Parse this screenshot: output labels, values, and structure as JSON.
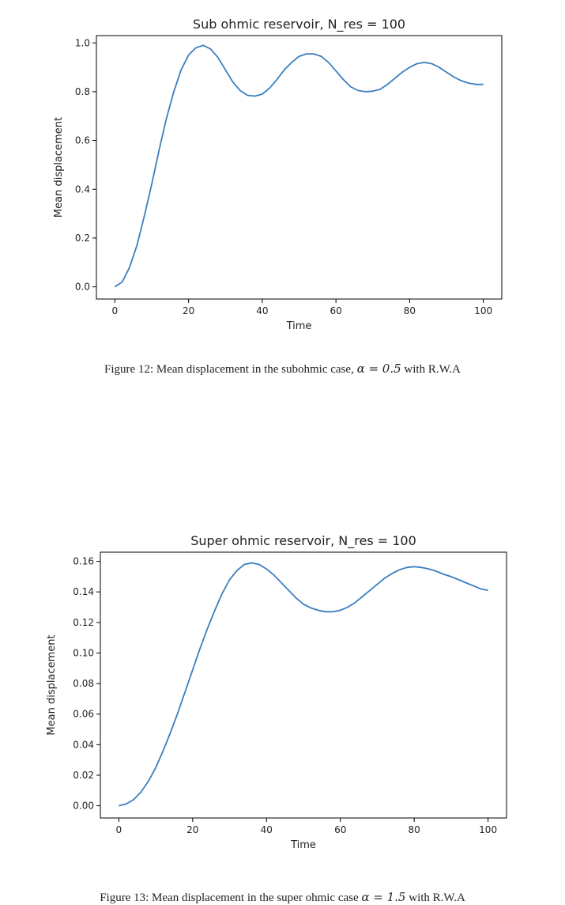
{
  "chart_data": [
    {
      "type": "line",
      "title": "Sub ohmic reservoir, N_res = 100",
      "xlabel": "Time",
      "ylabel": "Mean displacement",
      "xlim": [
        -5,
        105
      ],
      "ylim": [
        -0.05,
        1.03
      ],
      "xticks": [
        0,
        20,
        40,
        60,
        80,
        100
      ],
      "xtick_labels": [
        "0",
        "20",
        "40",
        "60",
        "80",
        "100"
      ],
      "yticks": [
        0.0,
        0.2,
        0.4,
        0.6,
        0.8,
        1.0
      ],
      "ytick_labels": [
        "0.0",
        "0.2",
        "0.4",
        "0.6",
        "0.8",
        "1.0"
      ],
      "grid": false,
      "color": "#3b7fbf",
      "series": [
        {
          "x": [
            0,
            2,
            4,
            6,
            8,
            10,
            12,
            14,
            16,
            18,
            20,
            22,
            24,
            26,
            28,
            30,
            32,
            34,
            36,
            38,
            40,
            42,
            44,
            46,
            48,
            50,
            52,
            54,
            56,
            58,
            60,
            62,
            64,
            66,
            68,
            70,
            72,
            74,
            76,
            78,
            80,
            82,
            84,
            86,
            88,
            90,
            92,
            94,
            96,
            98,
            100
          ],
          "y": [
            0.0,
            0.02,
            0.08,
            0.17,
            0.29,
            0.42,
            0.56,
            0.69,
            0.8,
            0.89,
            0.95,
            0.98,
            0.99,
            0.975,
            0.94,
            0.89,
            0.84,
            0.805,
            0.785,
            0.782,
            0.79,
            0.815,
            0.85,
            0.89,
            0.92,
            0.945,
            0.955,
            0.955,
            0.945,
            0.92,
            0.885,
            0.85,
            0.82,
            0.805,
            0.8,
            0.802,
            0.81,
            0.83,
            0.855,
            0.88,
            0.9,
            0.915,
            0.92,
            0.915,
            0.9,
            0.88,
            0.86,
            0.845,
            0.835,
            0.83,
            0.83
          ]
        }
      ]
    },
    {
      "type": "line",
      "title": "Super ohmic reservoir, N_res = 100",
      "xlabel": "Time",
      "ylabel": "Mean displacement",
      "xlim": [
        -5,
        105
      ],
      "ylim": [
        -0.008,
        0.166
      ],
      "xticks": [
        0,
        20,
        40,
        60,
        80,
        100
      ],
      "xtick_labels": [
        "0",
        "20",
        "40",
        "60",
        "80",
        "100"
      ],
      "yticks": [
        0.0,
        0.02,
        0.04,
        0.06,
        0.08,
        0.1,
        0.12,
        0.14,
        0.16
      ],
      "ytick_labels": [
        "0.00",
        "0.02",
        "0.04",
        "0.06",
        "0.08",
        "0.10",
        "0.12",
        "0.14",
        "0.16"
      ],
      "grid": false,
      "color": "#3b7fbf",
      "series": [
        {
          "x": [
            0,
            2,
            4,
            6,
            8,
            10,
            12,
            14,
            16,
            18,
            20,
            22,
            24,
            26,
            28,
            30,
            32,
            34,
            36,
            38,
            40,
            42,
            44,
            46,
            48,
            50,
            52,
            54,
            56,
            58,
            60,
            62,
            64,
            66,
            68,
            70,
            72,
            74,
            76,
            78,
            80,
            82,
            84,
            86,
            88,
            90,
            92,
            94,
            96,
            98,
            100
          ],
          "y": [
            0.0,
            0.0012,
            0.004,
            0.009,
            0.016,
            0.025,
            0.036,
            0.048,
            0.061,
            0.075,
            0.089,
            0.103,
            0.116,
            0.128,
            0.139,
            0.148,
            0.154,
            0.158,
            0.159,
            0.158,
            0.155,
            0.151,
            0.146,
            0.141,
            0.136,
            0.132,
            0.1295,
            0.128,
            0.127,
            0.127,
            0.128,
            0.13,
            0.133,
            0.137,
            0.141,
            0.145,
            0.149,
            0.152,
            0.1545,
            0.156,
            0.1565,
            0.156,
            0.155,
            0.1535,
            0.1515,
            0.15,
            0.148,
            0.146,
            0.144,
            0.142,
            0.141
          ]
        }
      ]
    }
  ],
  "captions": {
    "fig12": {
      "prefix": "Figure 12: Mean displacement in the subohmic case, ",
      "math": "α = 0.5",
      "suffix": " with R.W.A"
    },
    "fig13": {
      "prefix": "Figure 13: Mean displacement in the super ohmic case ",
      "math": "α = 1.5",
      "suffix": " with R.W.A"
    }
  }
}
